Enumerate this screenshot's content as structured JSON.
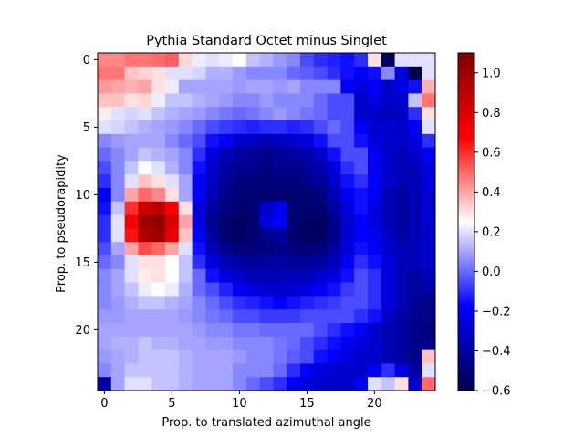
{
  "chart_data": {
    "type": "heatmap",
    "title": "Pythia Standard Octet minus Singlet",
    "xlabel": "Prop. to translated azimuthal angle",
    "ylabel": "Prop. to pseudorapidity",
    "rows": 25,
    "cols": 25,
    "x_ticks": [
      0,
      5,
      10,
      15,
      20
    ],
    "y_ticks": [
      0,
      5,
      10,
      15,
      20
    ],
    "colormap": "seismic",
    "color_range": [
      -0.6,
      1.1
    ],
    "colorbar_ticks": [
      -0.6,
      -0.4,
      -0.2,
      0.0,
      0.2,
      0.4,
      0.6,
      0.8,
      1.0
    ],
    "colorbar_tick_labels": [
      "−0.6",
      "−0.4",
      "−0.2",
      "0.0",
      "0.2",
      "0.4",
      "0.6",
      "0.8",
      "1.0"
    ],
    "values": [
      [
        0.45,
        0.45,
        0.48,
        0.48,
        0.5,
        0.52,
        0.32,
        0.22,
        0.2,
        0.22,
        0.25,
        0.15,
        0.12,
        0.08,
        0.05,
        -0.05,
        -0.1,
        -0.12,
        -0.15,
        -0.1,
        0.3,
        -0.55,
        0.2,
        0.2,
        0.2
      ],
      [
        0.48,
        0.48,
        0.35,
        0.32,
        0.3,
        0.2,
        0.2,
        0.18,
        0.12,
        0.12,
        0.08,
        0.05,
        0.05,
        0.05,
        0.0,
        -0.02,
        -0.05,
        -0.1,
        -0.15,
        -0.2,
        -0.15,
        0.05,
        -0.25,
        -0.6,
        0.2
      ],
      [
        0.42,
        0.4,
        0.38,
        0.4,
        0.3,
        0.22,
        0.1,
        0.1,
        0.1,
        0.1,
        0.08,
        0.1,
        0.1,
        0.08,
        0.1,
        0.05,
        0.05,
        0.05,
        -0.2,
        -0.25,
        -0.2,
        -0.3,
        -0.25,
        -0.15,
        0.38
      ],
      [
        0.35,
        0.35,
        0.3,
        0.32,
        0.22,
        0.15,
        0.15,
        0.12,
        0.1,
        0.08,
        0.05,
        0.05,
        0.08,
        0.05,
        0.05,
        0.05,
        0.0,
        -0.05,
        -0.05,
        -0.3,
        -0.25,
        -0.3,
        -0.3,
        0.15,
        0.48
      ],
      [
        0.28,
        0.2,
        0.18,
        0.2,
        0.15,
        0.12,
        0.1,
        0.08,
        0.05,
        0.02,
        0.0,
        0.02,
        0.05,
        0.08,
        0.05,
        0.02,
        0.0,
        -0.05,
        -0.05,
        -0.3,
        -0.3,
        -0.35,
        -0.3,
        -0.1,
        0.3
      ],
      [
        0.2,
        0.18,
        0.15,
        0.12,
        0.1,
        0.08,
        0.05,
        0.0,
        -0.05,
        -0.08,
        -0.1,
        -0.12,
        -0.1,
        -0.1,
        -0.12,
        -0.1,
        -0.05,
        0.0,
        -0.05,
        -0.2,
        -0.3,
        -0.3,
        -0.3,
        -0.2,
        0.2
      ],
      [
        0.05,
        0.08,
        0.1,
        0.1,
        0.1,
        0.05,
        0.0,
        -0.05,
        -0.15,
        -0.2,
        -0.3,
        -0.32,
        -0.35,
        -0.32,
        -0.3,
        -0.25,
        -0.15,
        -0.05,
        -0.05,
        -0.15,
        -0.25,
        -0.3,
        -0.3,
        -0.25,
        -0.1
      ],
      [
        0.0,
        0.05,
        0.1,
        0.15,
        0.12,
        0.1,
        0.05,
        -0.1,
        -0.25,
        -0.35,
        -0.4,
        -0.42,
        -0.45,
        -0.42,
        -0.4,
        -0.38,
        -0.3,
        -0.15,
        -0.05,
        -0.05,
        -0.2,
        -0.3,
        -0.35,
        -0.3,
        -0.2
      ],
      [
        -0.05,
        0.05,
        0.15,
        0.25,
        0.2,
        0.12,
        0.05,
        -0.15,
        -0.3,
        -0.4,
        -0.45,
        -0.45,
        -0.48,
        -0.45,
        -0.45,
        -0.42,
        -0.38,
        -0.25,
        -0.1,
        -0.05,
        -0.2,
        -0.3,
        -0.35,
        -0.35,
        -0.25
      ],
      [
        -0.1,
        0.05,
        0.2,
        0.35,
        0.3,
        0.2,
        0.1,
        -0.2,
        -0.32,
        -0.42,
        -0.48,
        -0.48,
        -0.5,
        -0.48,
        -0.48,
        -0.45,
        -0.42,
        -0.3,
        -0.15,
        -0.1,
        -0.2,
        -0.3,
        -0.35,
        -0.35,
        -0.25
      ],
      [
        -0.2,
        0.05,
        0.4,
        0.5,
        0.45,
        0.3,
        0.1,
        -0.2,
        -0.35,
        -0.45,
        -0.5,
        -0.5,
        -0.52,
        -0.5,
        -0.52,
        -0.52,
        -0.48,
        -0.35,
        -0.2,
        -0.15,
        -0.2,
        -0.35,
        -0.4,
        -0.35,
        -0.28
      ],
      [
        -0.15,
        0.15,
        0.6,
        0.85,
        0.9,
        0.7,
        0.3,
        -0.25,
        -0.4,
        -0.48,
        -0.52,
        -0.5,
        -0.3,
        -0.2,
        -0.5,
        -0.52,
        -0.52,
        -0.4,
        -0.25,
        -0.15,
        -0.25,
        -0.35,
        -0.4,
        -0.35,
        -0.28
      ],
      [
        -0.1,
        0.2,
        0.7,
        1.0,
        1.05,
        0.8,
        0.4,
        -0.25,
        -0.45,
        -0.52,
        -0.55,
        -0.52,
        -0.25,
        -0.2,
        -0.5,
        -0.55,
        -0.55,
        -0.45,
        -0.28,
        -0.18,
        -0.25,
        -0.35,
        -0.4,
        -0.35,
        -0.28
      ],
      [
        -0.1,
        0.2,
        0.65,
        0.95,
        1.0,
        0.75,
        0.35,
        -0.2,
        -0.4,
        -0.52,
        -0.55,
        -0.52,
        -0.45,
        -0.4,
        -0.52,
        -0.55,
        -0.55,
        -0.45,
        -0.28,
        -0.18,
        -0.22,
        -0.3,
        -0.4,
        -0.35,
        -0.3
      ],
      [
        -0.05,
        0.1,
        0.4,
        0.55,
        0.5,
        0.4,
        0.2,
        -0.15,
        -0.35,
        -0.45,
        -0.5,
        -0.48,
        -0.48,
        -0.45,
        -0.48,
        -0.5,
        -0.48,
        -0.4,
        -0.25,
        -0.15,
        -0.2,
        -0.3,
        -0.35,
        -0.35,
        -0.3
      ],
      [
        0.0,
        0.05,
        0.2,
        0.3,
        0.3,
        0.25,
        0.15,
        -0.1,
        -0.25,
        -0.35,
        -0.4,
        -0.42,
        -0.4,
        -0.4,
        -0.42,
        -0.42,
        -0.4,
        -0.35,
        -0.2,
        -0.1,
        -0.15,
        -0.25,
        -0.35,
        -0.35,
        -0.3
      ],
      [
        0.05,
        0.1,
        0.2,
        0.28,
        0.3,
        0.25,
        0.15,
        0.0,
        -0.15,
        -0.25,
        -0.3,
        -0.35,
        -0.35,
        -0.35,
        -0.35,
        -0.35,
        -0.3,
        -0.25,
        -0.15,
        -0.05,
        -0.1,
        -0.25,
        -0.35,
        -0.4,
        -0.35
      ],
      [
        0.05,
        0.1,
        0.15,
        0.22,
        0.25,
        0.22,
        0.12,
        0.0,
        -0.05,
        -0.12,
        -0.2,
        -0.25,
        -0.28,
        -0.3,
        -0.28,
        -0.25,
        -0.2,
        -0.15,
        -0.08,
        -0.05,
        -0.1,
        -0.25,
        -0.35,
        -0.4,
        -0.4
      ],
      [
        0.05,
        0.08,
        0.12,
        0.15,
        0.15,
        0.12,
        0.1,
        0.05,
        0.0,
        -0.05,
        -0.1,
        -0.12,
        -0.15,
        -0.18,
        -0.15,
        -0.12,
        -0.1,
        -0.08,
        -0.05,
        -0.05,
        -0.1,
        -0.25,
        -0.35,
        -0.42,
        -0.45
      ],
      [
        0.08,
        0.08,
        0.1,
        0.1,
        0.1,
        0.1,
        0.08,
        0.05,
        0.02,
        0.0,
        -0.05,
        -0.05,
        -0.08,
        -0.08,
        -0.08,
        -0.05,
        -0.05,
        -0.05,
        -0.05,
        -0.1,
        -0.15,
        -0.3,
        -0.4,
        -0.45,
        -0.45
      ],
      [
        0.1,
        0.1,
        0.1,
        0.1,
        0.1,
        0.1,
        0.1,
        0.08,
        0.05,
        0.05,
        0.02,
        0.02,
        0.0,
        0.0,
        0.0,
        0.0,
        -0.05,
        -0.1,
        -0.15,
        -0.2,
        -0.3,
        -0.35,
        -0.4,
        -0.45,
        -0.5
      ],
      [
        0.1,
        0.12,
        0.12,
        0.15,
        0.12,
        0.12,
        0.1,
        0.1,
        0.08,
        0.08,
        0.05,
        0.05,
        0.05,
        0.02,
        0.0,
        -0.05,
        -0.1,
        -0.15,
        -0.2,
        -0.25,
        -0.3,
        -0.35,
        -0.4,
        -0.45,
        -0.45
      ],
      [
        0.08,
        0.1,
        0.12,
        0.15,
        0.15,
        0.15,
        0.12,
        0.1,
        0.1,
        0.1,
        0.08,
        0.05,
        0.05,
        0.02,
        -0.02,
        -0.05,
        -0.15,
        -0.2,
        -0.25,
        -0.3,
        -0.3,
        -0.35,
        -0.4,
        -0.45,
        0.35
      ],
      [
        0.05,
        0.1,
        0.15,
        0.15,
        0.15,
        0.15,
        0.12,
        0.1,
        0.1,
        0.1,
        0.05,
        0.05,
        0.05,
        0.0,
        -0.1,
        -0.2,
        -0.25,
        -0.3,
        -0.3,
        -0.3,
        -0.2,
        -0.1,
        -0.25,
        -0.4,
        0.2
      ],
      [
        -0.4,
        0.1,
        0.2,
        0.2,
        0.15,
        0.15,
        0.12,
        0.1,
        0.1,
        0.1,
        0.05,
        0.0,
        -0.05,
        -0.1,
        -0.2,
        -0.25,
        -0.3,
        -0.3,
        -0.3,
        -0.2,
        0.2,
        0.15,
        0.3,
        -0.3,
        0.5
      ]
    ]
  }
}
